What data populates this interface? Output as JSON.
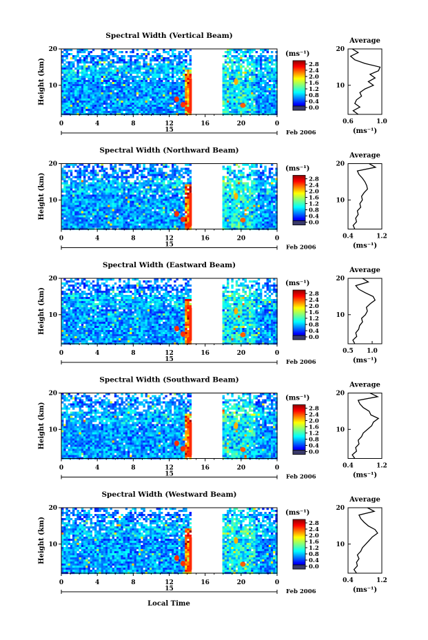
{
  "figure": {
    "xlabel": "Local Time",
    "date_label": "15",
    "month_label": "Feb 2006",
    "unit_label": "(ms⁻¹)",
    "colorbar_ticks": [
      "2.8",
      "2.4",
      "2.0",
      "1.6",
      "1.2",
      "0.8",
      "0.4",
      "0.0"
    ],
    "avg_title": "Average",
    "avg_xlabel": "(ms⁻¹)"
  },
  "chart_data": [
    {
      "type": "heatmap",
      "title": "Spectral Width (Vertical Beam)",
      "ylabel": "Height (km)",
      "x_ticks": [
        "0",
        "4",
        "8",
        "12",
        "16",
        "20",
        "0"
      ],
      "xlim": [
        0,
        24
      ],
      "y_ticks": [
        "20",
        "10"
      ],
      "ylim": [
        2,
        20
      ],
      "data_gap_hours": [
        14.6,
        17.9
      ],
      "colorbar": {
        "min": 0.0,
        "max": 2.8
      },
      "average_profile": {
        "xlim": [
          0.6,
          1.0
        ],
        "x_ticks": [
          "0.6",
          "1.0"
        ],
        "height_km": [
          2,
          3,
          4,
          5,
          6,
          7,
          8,
          9,
          10,
          11,
          12,
          13,
          14,
          15,
          16,
          17,
          18,
          19,
          20
        ],
        "values": [
          0.72,
          0.66,
          0.74,
          0.68,
          0.7,
          0.76,
          0.74,
          0.8,
          0.9,
          0.84,
          0.92,
          0.86,
          0.96,
          0.98,
          0.8,
          0.68,
          0.63,
          0.72,
          0.65
        ]
      }
    },
    {
      "type": "heatmap",
      "title": "Spectral Width (Northward Beam)",
      "ylabel": "Height (km)",
      "x_ticks": [
        "0",
        "4",
        "8",
        "12",
        "16",
        "20",
        "0"
      ],
      "xlim": [
        0,
        24
      ],
      "y_ticks": [
        "20",
        "10"
      ],
      "ylim": [
        2,
        20
      ],
      "data_gap_hours": [
        14.6,
        17.9
      ],
      "colorbar": {
        "min": 0.0,
        "max": 2.8
      },
      "average_profile": {
        "xlim": [
          0.4,
          1.2
        ],
        "x_ticks": [
          "0.4",
          "1.2"
        ],
        "height_km": [
          2,
          3,
          4,
          5,
          6,
          7,
          8,
          9,
          10,
          11,
          12,
          13,
          14,
          15,
          16,
          17,
          18,
          19,
          20
        ],
        "values": [
          0.56,
          0.52,
          0.6,
          0.58,
          0.64,
          0.62,
          0.7,
          0.68,
          0.74,
          0.72,
          0.78,
          0.86,
          0.84,
          0.8,
          0.74,
          0.66,
          0.62,
          1.05,
          0.9
        ]
      }
    },
    {
      "type": "heatmap",
      "title": "Spectral Width (Eastward Beam)",
      "ylabel": "Height (km)",
      "x_ticks": [
        "0",
        "4",
        "8",
        "12",
        "16",
        "20",
        "0"
      ],
      "xlim": [
        0,
        24
      ],
      "y_ticks": [
        "20",
        "10"
      ],
      "ylim": [
        2,
        20
      ],
      "data_gap_hours": [
        14.6,
        17.9
      ],
      "colorbar": {
        "min": 0.0,
        "max": 2.8
      },
      "average_profile": {
        "xlim": [
          0.5,
          1.2
        ],
        "x_ticks": [
          "0.5",
          "1.0"
        ],
        "height_km": [
          2,
          3,
          4,
          5,
          6,
          7,
          8,
          9,
          10,
          11,
          12,
          13,
          14,
          15,
          16,
          17,
          18,
          19,
          20
        ],
        "values": [
          0.64,
          0.6,
          0.68,
          0.66,
          0.72,
          0.74,
          0.8,
          0.78,
          0.86,
          0.9,
          0.88,
          0.96,
          1.06,
          1.02,
          0.86,
          0.72,
          0.66,
          0.92,
          0.8
        ]
      }
    },
    {
      "type": "heatmap",
      "title": "Spectral Width (Southward Beam)",
      "ylabel": "Height (km)",
      "x_ticks": [
        "0",
        "4",
        "8",
        "12",
        "16",
        "20",
        "0"
      ],
      "xlim": [
        0,
        24
      ],
      "y_ticks": [
        "20",
        "10"
      ],
      "ylim": [
        2,
        20
      ],
      "data_gap_hours": [
        14.6,
        17.9
      ],
      "colorbar": {
        "min": 0.0,
        "max": 2.8
      },
      "average_profile": {
        "xlim": [
          0.4,
          1.2
        ],
        "x_ticks": [
          "0.4",
          "1.2"
        ],
        "height_km": [
          2,
          3,
          4,
          5,
          6,
          7,
          8,
          9,
          10,
          11,
          12,
          13,
          14,
          15,
          16,
          17,
          18,
          19,
          20
        ],
        "values": [
          0.56,
          0.5,
          0.6,
          0.58,
          0.66,
          0.64,
          0.72,
          0.76,
          0.86,
          0.96,
          1.0,
          1.12,
          0.94,
          0.9,
          0.76,
          0.68,
          0.64,
          1.1,
          0.92
        ]
      }
    },
    {
      "type": "heatmap",
      "title": "Spectral Width (Westward Beam)",
      "ylabel": "Height (km)",
      "x_ticks": [
        "0",
        "4",
        "8",
        "12",
        "16",
        "20",
        "0"
      ],
      "xlim": [
        0,
        24
      ],
      "y_ticks": [
        "20",
        "10"
      ],
      "ylim": [
        2,
        20
      ],
      "data_gap_hours": [
        14.6,
        17.9
      ],
      "colorbar": {
        "min": 0.0,
        "max": 2.8
      },
      "average_profile": {
        "xlim": [
          0.4,
          1.2
        ],
        "x_ticks": [
          "0.4",
          "1.2"
        ],
        "height_km": [
          2,
          3,
          4,
          5,
          6,
          7,
          8,
          9,
          10,
          11,
          12,
          13,
          14,
          15,
          16,
          17,
          18,
          19,
          20
        ],
        "values": [
          0.6,
          0.54,
          0.62,
          0.6,
          0.66,
          0.62,
          0.7,
          0.74,
          0.82,
          0.9,
          0.98,
          1.1,
          1.04,
          0.88,
          0.78,
          0.7,
          0.66,
          1.02,
          0.86
        ]
      }
    }
  ]
}
